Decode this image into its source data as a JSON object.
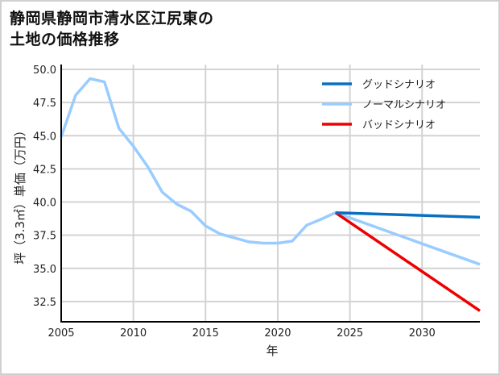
{
  "title_line1": "静岡県静岡市清水区江尻東の",
  "title_line2": "土地の価格推移",
  "chart_data": {
    "type": "line",
    "title": "静岡県静岡市清水区江尻東の土地の価格推移",
    "xlabel": "年",
    "ylabel": "坪（3.3㎡）単価（万円）",
    "xlim": [
      2005,
      2034
    ],
    "ylim": [
      31,
      50
    ],
    "xticks": [
      2005,
      2010,
      2015,
      2020,
      2025,
      2030
    ],
    "xtick_labels": [
      "2005",
      "2010",
      "2015",
      "2020",
      "2025",
      "2030"
    ],
    "yticks": [
      32.5,
      35.0,
      37.5,
      40.0,
      42.5,
      45.0,
      47.5,
      50.0
    ],
    "ytick_labels": [
      "32.5",
      "35.0",
      "37.5",
      "40.0",
      "42.5",
      "45.0",
      "47.5",
      "50.0"
    ],
    "grid": true,
    "legend_position": "upper right",
    "series": [
      {
        "name": "グッドシナリオ",
        "color": "#0a6fc2",
        "x": [
          2024,
          2034
        ],
        "values": [
          39.2,
          38.85
        ]
      },
      {
        "name": "ノーマルシナリオ",
        "color": "#99ccff",
        "x": [
          2005,
          2006,
          2007,
          2008,
          2009,
          2010,
          2011,
          2012,
          2013,
          2014,
          2015,
          2016,
          2017,
          2018,
          2019,
          2020,
          2021,
          2022,
          2023,
          2024,
          2034
        ],
        "values": [
          44.9,
          48.05,
          49.3,
          49.05,
          45.55,
          44.2,
          42.65,
          40.75,
          39.85,
          39.3,
          38.2,
          37.6,
          37.3,
          37.0,
          36.9,
          36.9,
          37.05,
          38.25,
          38.7,
          39.2,
          35.3
        ]
      },
      {
        "name": "バッドシナリオ",
        "color": "#ee0000",
        "x": [
          2024,
          2034
        ],
        "values": [
          39.2,
          31.8
        ]
      }
    ]
  }
}
